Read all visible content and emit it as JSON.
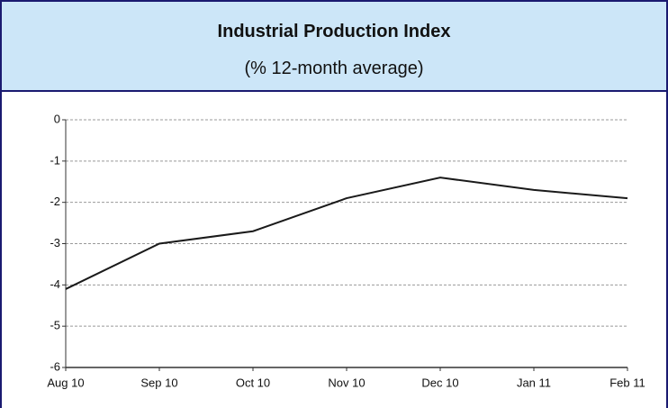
{
  "chart_data": {
    "type": "line",
    "title": "Industrial Production Index",
    "subtitle": "(% 12-month average)",
    "categories": [
      "Aug 10",
      "Sep 10",
      "Oct 10",
      "Nov 10",
      "Dec 10",
      "Jan 11",
      "Feb 11"
    ],
    "series": [
      {
        "name": "Industrial Production Index",
        "color": "#1a1a1a",
        "values": [
          -4.1,
          -3.0,
          -2.7,
          -1.9,
          -1.4,
          -1.7,
          -1.9
        ]
      }
    ],
    "ylim": [
      -6,
      0
    ],
    "yticks": [
      0,
      -1,
      -2,
      -3,
      -4,
      -5,
      -6
    ],
    "grid": true
  }
}
